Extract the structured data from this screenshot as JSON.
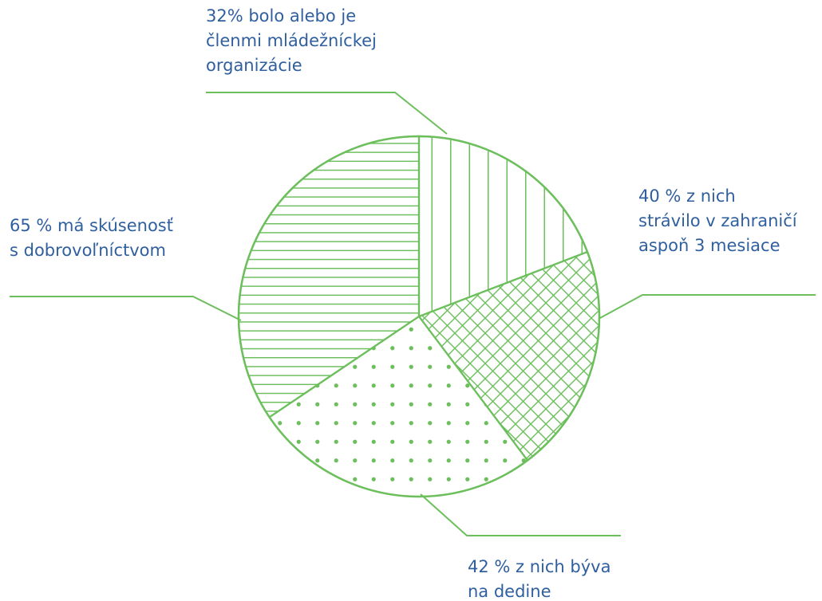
{
  "chart_data": {
    "type": "pie",
    "title": "",
    "slices": [
      {
        "value": 32,
        "lines": [
          "32% bolo alebo je",
          "členmi mládežníckej",
          "organizácie"
        ],
        "pattern": "vertical-lines"
      },
      {
        "value": 40,
        "lines": [
          "40 % z nich",
          "strávilo v zahraničí",
          "aspoň 3 mesiace"
        ],
        "pattern": "crosshatch"
      },
      {
        "value": 42,
        "lines": [
          "42 % z nich býva",
          "na dedine"
        ],
        "pattern": "dots"
      },
      {
        "value": 65,
        "lines": [
          "65 % má skúsenosť",
          "s dobrovoľníctvom"
        ],
        "pattern": "horizontal-lines"
      }
    ],
    "colors": {
      "stroke": "#6cbf5c",
      "text": "#2f5f9e",
      "background": "#ffffff"
    }
  }
}
